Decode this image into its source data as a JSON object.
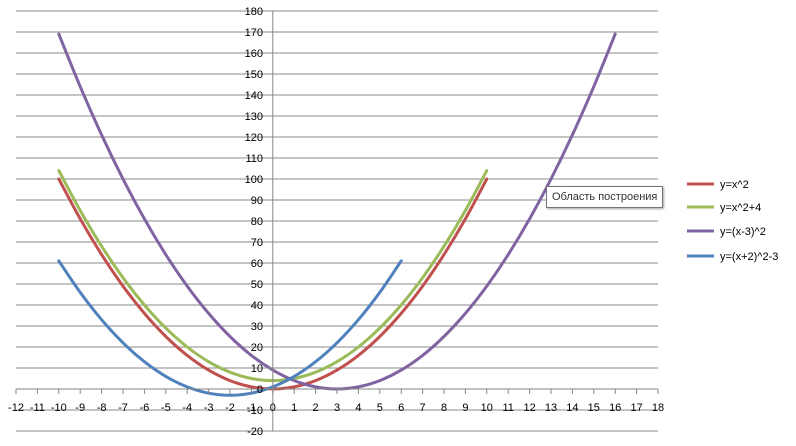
{
  "chart_data": {
    "type": "line",
    "title": "",
    "xlabel": "",
    "ylabel": "",
    "xlim": [
      -12,
      18
    ],
    "ylim": [
      -20,
      180
    ],
    "xticks": [
      -12,
      -11,
      -10,
      -9,
      -8,
      -7,
      -6,
      -5,
      -4,
      -3,
      -2,
      -1,
      0,
      1,
      2,
      3,
      4,
      5,
      6,
      7,
      8,
      9,
      10,
      11,
      12,
      13,
      14,
      15,
      16,
      17,
      18
    ],
    "yticks": [
      -20,
      -10,
      0,
      10,
      20,
      30,
      40,
      50,
      60,
      70,
      80,
      90,
      100,
      110,
      120,
      130,
      140,
      150,
      160,
      170,
      180
    ],
    "grid": true,
    "legend_position": "right",
    "series": [
      {
        "name": "y=x^2",
        "color": "#C0504D",
        "x": [
          -10,
          -9,
          -8,
          -7,
          -6,
          -5,
          -4,
          -3,
          -2,
          -1,
          0,
          1,
          2,
          3,
          4,
          5,
          6,
          7,
          8,
          9,
          10
        ],
        "y": [
          100,
          81,
          64,
          49,
          36,
          25,
          16,
          9,
          4,
          1,
          0,
          1,
          4,
          9,
          16,
          25,
          36,
          49,
          64,
          81,
          100
        ]
      },
      {
        "name": "y=x^2+4",
        "color": "#9BBB59",
        "x": [
          -10,
          -9,
          -8,
          -7,
          -6,
          -5,
          -4,
          -3,
          -2,
          -1,
          0,
          1,
          2,
          3,
          4,
          5,
          6,
          7,
          8,
          9,
          10
        ],
        "y": [
          104,
          85,
          68,
          53,
          40,
          29,
          20,
          13,
          8,
          5,
          4,
          5,
          8,
          13,
          20,
          29,
          40,
          53,
          68,
          85,
          104
        ]
      },
      {
        "name": "y=(x-3)^2",
        "color": "#8064A2",
        "x": [
          -10,
          -9,
          -8,
          -7,
          -6,
          -5,
          -4,
          -3,
          -2,
          -1,
          0,
          1,
          2,
          3,
          4,
          5,
          6,
          7,
          8,
          9,
          10,
          11,
          12,
          13,
          14,
          15,
          16
        ],
        "y": [
          169,
          144,
          121,
          100,
          81,
          64,
          49,
          36,
          25,
          16,
          9,
          4,
          1,
          0,
          1,
          4,
          9,
          16,
          25,
          36,
          49,
          64,
          81,
          100,
          121,
          144,
          169
        ]
      },
      {
        "name": "y=(x+2)^2-3",
        "color": "#4F81BD",
        "x": [
          -10,
          -9,
          -8,
          -7,
          -6,
          -5,
          -4,
          -3,
          -2,
          -1,
          0,
          1,
          2,
          3,
          4,
          5,
          6
        ],
        "y": [
          61,
          46,
          33,
          22,
          13,
          6,
          1,
          -2,
          -3,
          -2,
          1,
          6,
          13,
          22,
          33,
          46,
          61
        ]
      }
    ]
  },
  "tooltip": {
    "text": "Область построения"
  },
  "colors": {
    "gridline": "#888888",
    "axis": "#868686",
    "background": "#ffffff"
  }
}
